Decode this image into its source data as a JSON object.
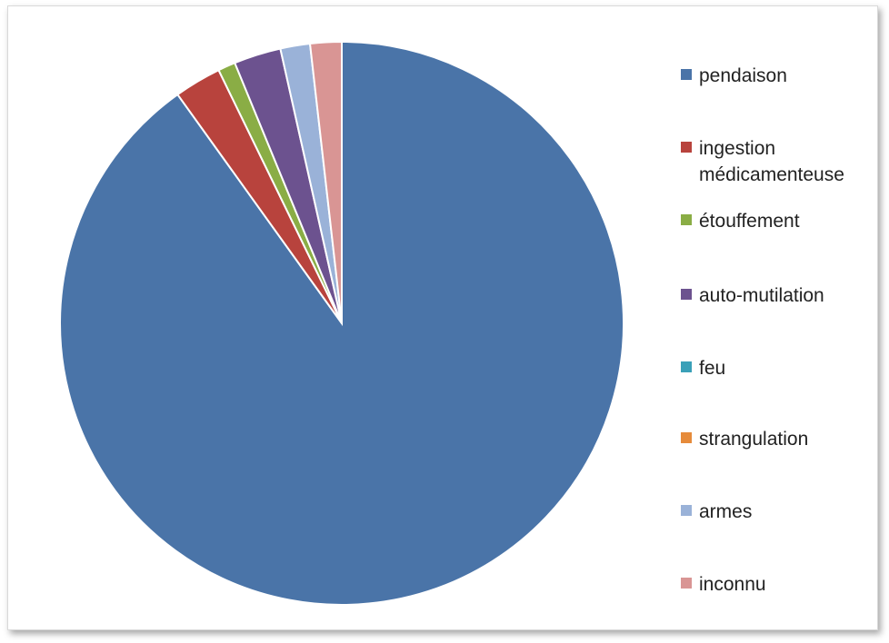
{
  "chart_data": {
    "type": "pie",
    "title": "",
    "slices": [
      {
        "label": "pendaison",
        "value": 90.1,
        "color": "#4a74a8"
      },
      {
        "label": "ingestion médicamenteuse",
        "value": 2.7,
        "color": "#b8433d"
      },
      {
        "label": "étouffement",
        "value": 1.0,
        "color": "#8aad45"
      },
      {
        "label": "auto-mutilation",
        "value": 2.7,
        "color": "#6c528f"
      },
      {
        "label": "feu",
        "value": 0.0,
        "color": "#3aa0b8"
      },
      {
        "label": "strangulation",
        "value": 0.0,
        "color": "#e68b3b"
      },
      {
        "label": "armes",
        "value": 1.7,
        "color": "#9ab2d8"
      },
      {
        "label": "inconnu",
        "value": 1.8,
        "color": "#d99594"
      }
    ],
    "legend_position": "right",
    "start_angle": "top",
    "direction": "clockwise"
  }
}
